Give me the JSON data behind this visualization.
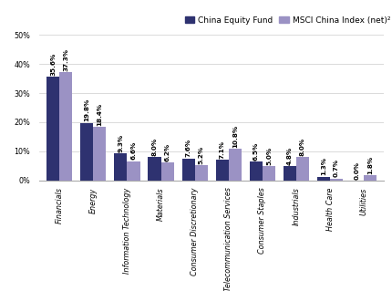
{
  "categories": [
    "Financials",
    "Energy",
    "Information Technology",
    "Materials",
    "Consumer Discretionary",
    "Telecommunication Services",
    "Consumer Staples",
    "Industrials",
    "Health Care",
    "Utilities"
  ],
  "fund_values": [
    35.6,
    19.8,
    9.3,
    8.0,
    7.6,
    7.1,
    6.5,
    4.8,
    1.3,
    0.0
  ],
  "benchmark_values": [
    37.3,
    18.4,
    6.6,
    6.2,
    5.2,
    10.8,
    5.0,
    8.0,
    0.7,
    1.8
  ],
  "fund_color": "#2e3270",
  "benchmark_color": "#9b92c4",
  "legend_fund": "China Equity Fund",
  "legend_benchmark": "MSCI China Index (net)²",
  "ylim": [
    0,
    50
  ],
  "yticks": [
    0,
    10,
    20,
    30,
    40,
    50
  ],
  "bar_width": 0.38,
  "font_size_label": 5.2,
  "font_size_tick": 5.8,
  "font_size_legend": 6.5,
  "background_color": "#ffffff"
}
